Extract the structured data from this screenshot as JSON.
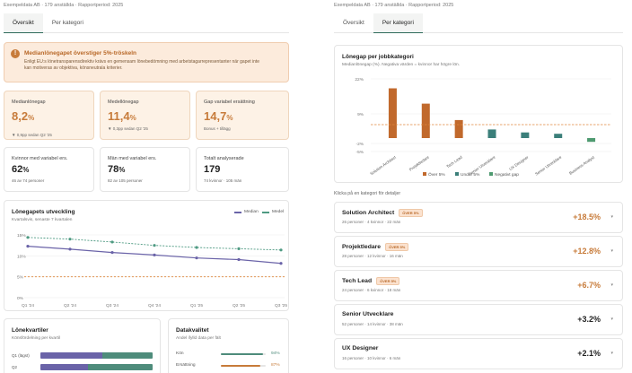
{
  "company": "Exempeldata AB · 179 anställda · Rapportperiod: 2025",
  "tabs": [
    "Översikt",
    "Per kategori"
  ],
  "alert": {
    "title": "Medianlönegapet överstiger 5%-tröskeln",
    "text": "Enligt EU:s lönetransparensdirektiv krävs en gemensam lönebedömning med arbetstagarrepresentanter när gapet inte kan motiveras av objektiva, könsneutrala kriterier."
  },
  "kpis": [
    {
      "title": "Medianlönegap",
      "value": "8,2",
      "unit": "%",
      "sub": "▼ 0,9pp sedan Q2 '25"
    },
    {
      "title": "Medellönegap",
      "value": "11,4",
      "unit": "%",
      "sub": "▼ 0,3pp sedan Q2 '25"
    },
    {
      "title": "Gap variabel ersättning",
      "value": "14,7",
      "unit": "%",
      "sub": "Bonus + tillägg"
    },
    {
      "title": "Kvinnor med variabel ers.",
      "value": "62",
      "unit": "%",
      "sub": "46 av 74 personer"
    },
    {
      "title": "Män med variabel ers.",
      "value": "78",
      "unit": "%",
      "sub": "82 av 105 personer"
    },
    {
      "title": "Totalt analyserade",
      "value": "179",
      "unit": "",
      "sub": "74 kvinnor · 105 män"
    }
  ],
  "trend": {
    "title": "Lönegapets utveckling",
    "sub": "Kvartalsvis, senaste 7 kvartalen",
    "legend": [
      "Median",
      "Medel"
    ],
    "colors": {
      "median": "#6a63a8",
      "medel": "#4e9a82",
      "threshold": "#e0883e"
    },
    "ylim": [
      0,
      15
    ],
    "yticks": [
      "15%",
      "10%",
      "5%",
      "0%"
    ],
    "quarters": [
      "Q1 '24",
      "Q2 '24",
      "Q3 '24",
      "Q4 '24",
      "Q1 '25",
      "Q2 '25",
      "Q3 '25"
    ],
    "median": [
      12.3,
      11.6,
      10.8,
      10.2,
      9.5,
      9.1,
      8.2
    ],
    "medel": [
      14.4,
      14.0,
      13.3,
      12.5,
      12.0,
      11.7,
      11.4
    ],
    "threshold": 5
  },
  "quartiles": {
    "title": "Lönekvartiler",
    "sub": "Könsfördelning per kvartil",
    "rows": [
      {
        "label": "Q1 (lägst)",
        "women": 0.55
      },
      {
        "label": "Q2",
        "women": 0.42
      }
    ]
  },
  "data_quality": {
    "title": "Datakvalitet",
    "sub": "Andel ifylld data per fält",
    "rows": [
      {
        "label": "Kön",
        "pct": "94%",
        "value": 0.94,
        "color": "#4e8c7b"
      },
      {
        "label": "Ersättning",
        "pct": "87%",
        "value": 0.87,
        "color": "#c77b3a"
      }
    ]
  },
  "chart_data": {
    "type": "bar",
    "title": "Lönegap per jobbkategori",
    "subtitle": "Medianlönegap (%). Negativa värden = kvinnor har högre lön.",
    "categories": [
      "Solution Architect",
      "Projektledare",
      "Tech Lead",
      "Senior Utvecklare",
      "UX Designer",
      "Senior Utvecklare",
      "Business Analyst"
    ],
    "values": [
      18.5,
      12.8,
      6.7,
      3.2,
      2.1,
      1.6,
      -1.4
    ],
    "yticks": [
      "22%",
      "9%",
      "-2%",
      "-5%"
    ],
    "ylim": [
      -5,
      22
    ],
    "threshold": 5,
    "legend": [
      "Över 5%",
      "Under 5%",
      "Negativt gap"
    ],
    "colors": {
      "over": "#c1692c",
      "under": "#3b7f7a",
      "negative": "#4e9a70",
      "threshold": "#e0883e"
    }
  },
  "details_label": "Klicka på en kategori för detaljer",
  "categories": [
    {
      "name": "Solution Architect",
      "badge": "ÖVER 5%",
      "sub": "26 personer · 4 kvinnor · 22 män",
      "value": "+18.5%",
      "hi": true
    },
    {
      "name": "Projektledare",
      "badge": "ÖVER 5%",
      "sub": "28 personer · 12 kvinnor · 16 män",
      "value": "+12.8%",
      "hi": true
    },
    {
      "name": "Tech Lead",
      "badge": "ÖVER 5%",
      "sub": "24 personer · 6 kvinnor · 18 män",
      "value": "+6.7%",
      "hi": true
    },
    {
      "name": "Senior Utvecklare",
      "badge": "",
      "sub": "52 personer · 14 kvinnor · 38 män",
      "value": "+3.2%",
      "hi": false
    },
    {
      "name": "UX Designer",
      "badge": "",
      "sub": "16 personer · 10 kvinnor · 6 män",
      "value": "+2.1%",
      "hi": false
    }
  ]
}
